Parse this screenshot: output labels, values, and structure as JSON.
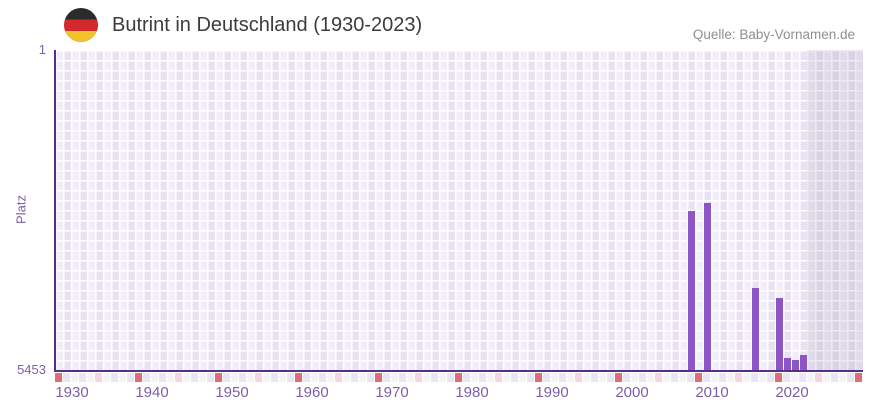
{
  "header": {
    "title": "Butrint in Deutschland (1930-2023)",
    "source": "Quelle: Baby-Vornamen.de",
    "flag_icon": "german-flag-icon"
  },
  "chart_data": {
    "type": "bar",
    "title": "Butrint in Deutschland (1930-2023)",
    "xlabel": "",
    "ylabel": "Platz",
    "y_axis": {
      "top_tick_label": "1",
      "bottom_tick_label": "5453",
      "min": 1,
      "max": 5453,
      "inverted": true
    },
    "x_axis": {
      "start": 1930,
      "end": 2030,
      "data_end": 2023,
      "tick_years": [
        1930,
        1940,
        1950,
        1960,
        1970,
        1980,
        1990,
        2000,
        2010,
        2020
      ]
    },
    "series": [
      {
        "name": "Platz",
        "points": [
          {
            "year": 2009,
            "rank": 2750
          },
          {
            "year": 2011,
            "rank": 2610
          },
          {
            "year": 2017,
            "rank": 4050
          },
          {
            "year": 2020,
            "rank": 4220
          },
          {
            "year": 2021,
            "rank": 5250
          },
          {
            "year": 2022,
            "rank": 5280
          },
          {
            "year": 2023,
            "rank": 5190
          }
        ]
      }
    ],
    "future_band": {
      "from": 2024,
      "to": 2030
    },
    "legend": "none",
    "grid": "checkered",
    "colors": {
      "bar": "#8c55c6",
      "axis_line": "#55308a",
      "axis_label": "#7b5fa9",
      "grid_cell_light": "#f2eef9",
      "grid_cell_dark": "#e9e2f3",
      "decade_marker": "#df6b7b",
      "half_decade_marker": "#f2d7e0",
      "strip_cell_even": "#f6f2fa",
      "strip_cell_odd": "#ebe4f4",
      "future_band_overlay": "rgba(122,108,152,0.14)"
    }
  }
}
